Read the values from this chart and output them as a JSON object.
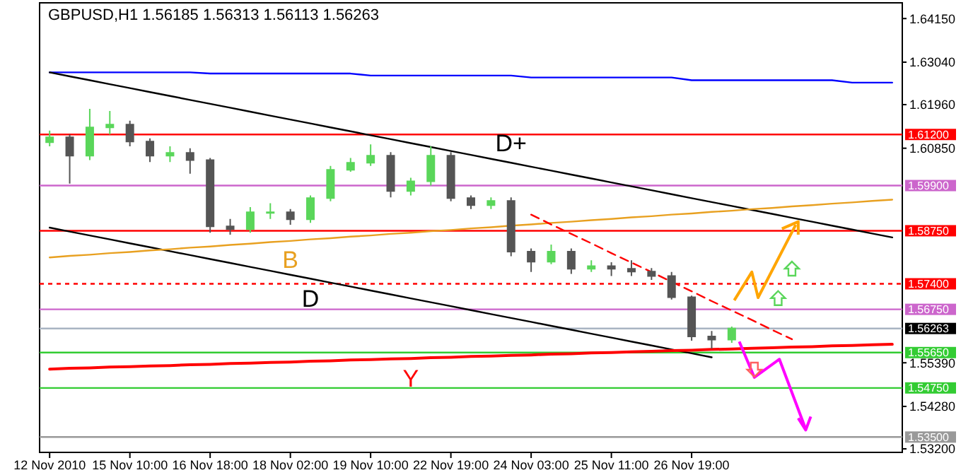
{
  "chart_data": {
    "type": "candlestick",
    "title": "GBPUSD,H1  1.56185 1.56313 1.56113 1.56263",
    "categories": [
      "12 Nov 2010",
      null,
      null,
      null,
      "15 Nov 10:00",
      null,
      null,
      null,
      "16 Nov 18:00",
      null,
      null,
      null,
      "18 Nov 02:00",
      null,
      null,
      null,
      "19 Nov 10:00",
      null,
      null,
      null,
      "22 Nov 19:00",
      null,
      null,
      null,
      "24 Nov 03:00",
      null,
      null,
      null,
      "25 Nov 11:00",
      null,
      null,
      null,
      "26 Nov 19:00",
      null,
      null,
      null,
      null,
      null,
      null,
      null,
      null,
      null,
      null
    ],
    "ohlc": [
      [
        1.61,
        1.613,
        1.609,
        1.6113
      ],
      [
        1.6113,
        1.612,
        1.5995,
        1.6066
      ],
      [
        1.6066,
        1.6185,
        1.6055,
        1.6138
      ],
      [
        1.6138,
        1.618,
        1.612,
        1.6145
      ],
      [
        1.6145,
        1.6155,
        1.609,
        1.6102
      ],
      [
        1.6102,
        1.611,
        1.605,
        1.6066
      ],
      [
        1.6066,
        1.609,
        1.605,
        1.6073
      ],
      [
        1.6073,
        1.6085,
        1.602,
        1.6055
      ],
      [
        1.6055,
        1.606,
        1.587,
        1.5886
      ],
      [
        1.5886,
        1.5905,
        1.5865,
        1.5879
      ],
      [
        1.5879,
        1.5935,
        1.587,
        1.5922
      ],
      [
        1.5922,
        1.5945,
        1.5905,
        1.5922
      ],
      [
        1.5922,
        1.593,
        1.589,
        1.5904
      ],
      [
        1.5904,
        1.5965,
        1.5895,
        1.5958
      ],
      [
        1.5958,
        1.604,
        1.595,
        1.603
      ],
      [
        1.603,
        1.606,
        1.6025,
        1.6048
      ],
      [
        1.6048,
        1.6095,
        1.604,
        1.6066
      ],
      [
        1.6066,
        1.6075,
        1.596,
        1.5976
      ],
      [
        1.5976,
        1.601,
        1.5965,
        1.6001
      ],
      [
        1.6001,
        1.609,
        1.599,
        1.6066
      ],
      [
        1.6066,
        1.6075,
        1.595,
        1.5958
      ],
      [
        1.5958,
        1.5965,
        1.593,
        1.594
      ],
      [
        1.594,
        1.596,
        1.593,
        1.5951
      ],
      [
        1.5951,
        1.596,
        1.581,
        1.5822
      ],
      [
        1.5822,
        1.583,
        1.577,
        1.5796
      ],
      [
        1.5796,
        1.584,
        1.579,
        1.5822
      ],
      [
        1.5822,
        1.583,
        1.5765,
        1.5778
      ],
      [
        1.5778,
        1.58,
        1.577,
        1.5785
      ],
      [
        1.5785,
        1.5795,
        1.576,
        1.5778
      ],
      [
        1.5778,
        1.58,
        1.576,
        1.5771
      ],
      [
        1.5771,
        1.578,
        1.575,
        1.576
      ],
      [
        1.576,
        1.577,
        1.57,
        1.5706
      ],
      [
        1.5706,
        1.571,
        1.5595,
        1.5606
      ],
      [
        1.5606,
        1.562,
        1.5575,
        1.5598
      ],
      [
        1.5598,
        1.56313,
        1.559,
        1.56263
      ],
      null,
      null,
      null,
      null,
      null,
      null,
      null,
      null
    ],
    "series": [
      {
        "type": "line",
        "color": "#0000ff",
        "values": [
          1.6278,
          1.6278,
          1.6278,
          1.6278,
          1.6278,
          1.6278,
          1.6278,
          1.6278,
          1.6275,
          1.6275,
          1.6275,
          1.6275,
          1.6275,
          1.6275,
          1.6275,
          1.6275,
          1.627,
          1.627,
          1.627,
          1.627,
          1.627,
          1.627,
          1.627,
          1.627,
          1.6265,
          1.6265,
          1.6265,
          1.6265,
          1.6265,
          1.6265,
          1.6265,
          1.6265,
          1.6258,
          1.6258,
          1.6258,
          1.6258,
          1.6258,
          1.6258,
          1.6258,
          1.6258,
          1.6252,
          1.6252,
          1.6252
        ]
      },
      {
        "type": "line",
        "name": "D+",
        "color": "#000000",
        "values": [
          1.6278,
          1.6268,
          1.6258,
          1.6248,
          1.6238,
          1.6228,
          1.6218,
          1.6208,
          1.6198,
          1.6188,
          1.6178,
          1.6168,
          1.6158,
          1.6148,
          1.6138,
          1.6128,
          1.6118,
          1.6108,
          1.6098,
          1.6088,
          1.6078,
          1.6068,
          1.6058,
          1.6048,
          1.6038,
          1.6028,
          1.6018,
          1.6008,
          1.5998,
          1.5988,
          1.5978,
          1.5968,
          1.5958,
          1.5948,
          1.5938,
          1.5928,
          1.5918,
          1.5908,
          1.5898,
          1.5888,
          1.5878,
          1.5868,
          1.5858
        ]
      },
      {
        "type": "line",
        "name": "D",
        "color": "#000000",
        "values": [
          1.5883,
          1.5873,
          1.5863,
          1.5853,
          1.5843,
          1.5833,
          1.5823,
          1.5813,
          1.5803,
          1.5793,
          1.5783,
          1.5773,
          1.5763,
          1.5753,
          1.5743,
          1.5733,
          1.5723,
          1.5713,
          1.5703,
          1.5693,
          1.5683,
          1.5673,
          1.5663,
          1.5653,
          1.5643,
          1.5633,
          1.5623,
          1.5613,
          1.5603,
          1.5593,
          1.5583,
          1.5573,
          1.5563,
          1.5553,
          null,
          null,
          null,
          null,
          null,
          null,
          null,
          null,
          null
        ]
      },
      {
        "type": "line",
        "name": "B",
        "color": "#e8a020",
        "values": [
          1.5807,
          1.5811,
          1.5814,
          1.5818,
          1.5821,
          1.5825,
          1.5828,
          1.5832,
          1.5835,
          1.5839,
          1.5842,
          1.5846,
          1.5849,
          1.5853,
          1.5856,
          1.586,
          1.5863,
          1.5867,
          1.587,
          1.5874,
          1.5877,
          1.5881,
          1.5884,
          1.5888,
          1.5891,
          1.5895,
          1.5898,
          1.5902,
          1.5905,
          1.5909,
          1.5912,
          1.5916,
          1.5919,
          1.5923,
          1.5926,
          1.593,
          1.5933,
          1.5937,
          1.594,
          1.5944,
          1.5947,
          1.5951,
          1.5954
        ]
      },
      {
        "type": "line",
        "name": "Y",
        "color": "#ff0000",
        "values": [
          1.5523,
          1.5525,
          1.5526,
          1.5528,
          1.5529,
          1.5531,
          1.5532,
          1.5534,
          1.5535,
          1.5537,
          1.5538,
          1.554,
          1.5541,
          1.5543,
          1.5544,
          1.5546,
          1.5547,
          1.5549,
          1.555,
          1.5552,
          1.5553,
          1.5555,
          1.5556,
          1.5558,
          1.5559,
          1.5561,
          1.5562,
          1.5564,
          1.5565,
          1.5567,
          1.5568,
          1.557,
          1.5571,
          1.5573,
          1.5574,
          1.5576,
          1.5577,
          1.5579,
          1.558,
          1.5582,
          1.5583,
          1.5585,
          1.5586
        ]
      },
      {
        "type": "line",
        "color": "#ff0000",
        "line_style": "dashed",
        "values": [
          null,
          null,
          null,
          null,
          null,
          null,
          null,
          null,
          null,
          null,
          null,
          null,
          null,
          null,
          null,
          null,
          null,
          null,
          null,
          null,
          null,
          null,
          null,
          null,
          1.5916,
          1.5891,
          1.5867,
          1.5843,
          1.5818,
          1.5794,
          1.577,
          1.5745,
          1.5721,
          1.5696,
          1.5672,
          1.5648,
          1.5623,
          1.5599,
          null,
          null,
          null,
          null,
          null
        ]
      }
    ],
    "ylim": [
      1.5311,
      1.6455
    ],
    "yticks": [
      {
        "value": 1.6415,
        "label": "1.64150"
      },
      {
        "value": 1.6304,
        "label": "1.63040"
      },
      {
        "value": 1.6196,
        "label": "1.61960"
      },
      {
        "value": 1.6085,
        "label": "1.60850"
      },
      {
        "value": 1.5539,
        "label": "1.55390"
      },
      {
        "value": 1.5428,
        "label": "1.54280"
      },
      {
        "value": 1.532,
        "label": "1.53200"
      }
    ],
    "ref_lines": [
      {
        "axis": "y",
        "value": 1.612,
        "label": "1.61200",
        "color": "#ff0000"
      },
      {
        "axis": "y",
        "value": 1.599,
        "label": "1.59900",
        "color": "#cc66cc"
      },
      {
        "axis": "y",
        "value": 1.5875,
        "label": "1.58750",
        "color": "#ff0000"
      },
      {
        "axis": "y",
        "value": 1.574,
        "label": "1.57400",
        "color": "#ff0000",
        "line_style": "dashed"
      },
      {
        "axis": "y",
        "value": 1.5675,
        "label": "1.56750",
        "color": "#cc66cc"
      },
      {
        "axis": "y",
        "value": 1.56263,
        "label": "1.56263",
        "color": "#a9b4c2"
      },
      {
        "axis": "y",
        "value": 1.5565,
        "label": "1.55650",
        "color": "#33cc33"
      },
      {
        "axis": "y",
        "value": 1.5475,
        "label": "1.54750",
        "color": "#33cc33"
      },
      {
        "axis": "y",
        "value": 1.535,
        "label": "1.53500",
        "color": "#999999"
      }
    ],
    "grid": false,
    "marker": "none"
  }
}
